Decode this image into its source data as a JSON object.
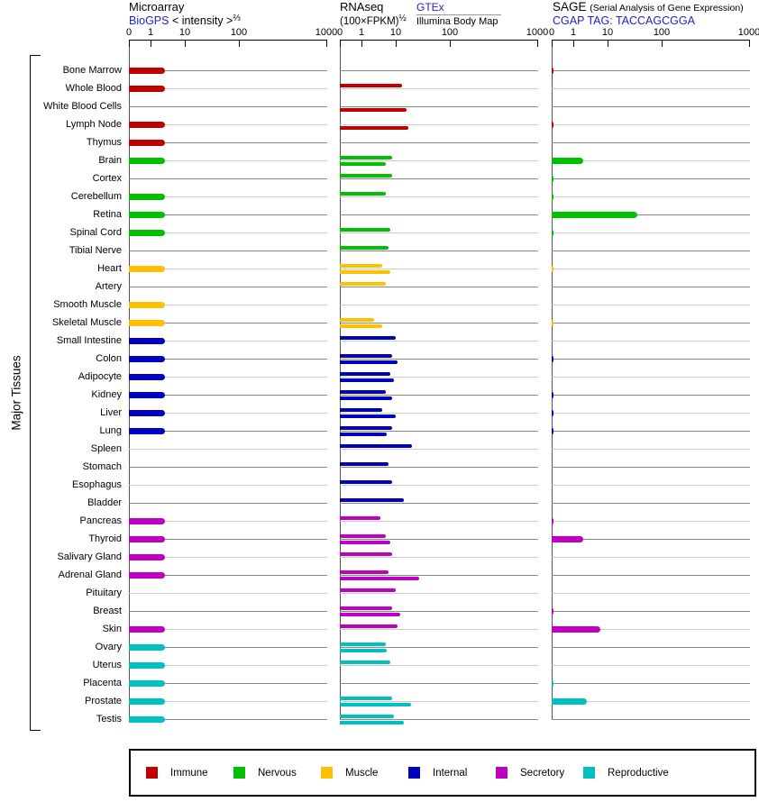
{
  "side_label": "Major Tissues",
  "panels": {
    "microarray": {
      "title": "Microarray",
      "link": "BioGPS",
      "scale_label": "< intensity >",
      "scale_sup": "⅔",
      "ticks": [
        "0",
        "1",
        "10",
        "100",
        "1000"
      ]
    },
    "rnaseq": {
      "title": "RNAseq",
      "scale_label": "(100×FPKM)",
      "scale_sup": "½",
      "link": "GTEx",
      "sublink": "Illumina Body Map",
      "ticks": [
        "0",
        "1",
        "10",
        "100",
        "1000"
      ]
    },
    "sage": {
      "title": "SAGE",
      "subtitle": "(Serial Analysis of Gene Expression)",
      "link": "CGAP",
      "tag_label": "TAG: TACCAGCGGA",
      "ticks": [
        "0",
        "1",
        "10",
        "100",
        "1000"
      ]
    }
  },
  "category_colors": {
    "immune": "#c00000",
    "nervous": "#00c000",
    "muscle": "#ffc000",
    "internal": "#0000c0",
    "secretory": "#c000c0",
    "reproductive": "#00c0c0"
  },
  "legend": [
    {
      "label": "Immune",
      "category": "immune"
    },
    {
      "label": "Nervous",
      "category": "nervous"
    },
    {
      "label": "Muscle",
      "category": "muscle"
    },
    {
      "label": "Internal",
      "category": "internal"
    },
    {
      "label": "Secretory",
      "category": "secretory"
    },
    {
      "label": "Reproductive",
      "category": "reproductive"
    }
  ],
  "chart_data": {
    "type": "bar",
    "orientation": "horizontal",
    "x_scale": "compressed log, ticks at 0/1/10/100/1000",
    "xlim": [
      0,
      1000
    ],
    "series_info": [
      {
        "key": "microarray",
        "name": "Microarray BioGPS < intensity >^2/3"
      },
      {
        "key": "rnaseq_gtex",
        "name": "RNAseq GTEx (100×FPKM)^1/2"
      },
      {
        "key": "rnaseq_illumina",
        "name": "RNAseq Illumina Body Map (100×FPKM)^1/2"
      },
      {
        "key": "sage",
        "name": "SAGE CGAP TAG: TACCAGCGGA"
      }
    ],
    "tissues": [
      {
        "name": "Bone Marrow",
        "category": "immune",
        "microarray": 2.7,
        "rnaseq_gtex": null,
        "rnaseq_illumina": null,
        "sage": 0.1
      },
      {
        "name": "Whole Blood",
        "category": "immune",
        "microarray": 2.7,
        "rnaseq_gtex": 13,
        "rnaseq_illumina": null,
        "sage": null
      },
      {
        "name": "White Blood Cells",
        "category": "immune",
        "microarray": null,
        "rnaseq_gtex": null,
        "rnaseq_illumina": 16,
        "sage": null
      },
      {
        "name": "Lymph Node",
        "category": "immune",
        "microarray": 2.7,
        "rnaseq_gtex": null,
        "rnaseq_illumina": 17,
        "sage": 0.1
      },
      {
        "name": "Thymus",
        "category": "immune",
        "microarray": 2.7,
        "rnaseq_gtex": null,
        "rnaseq_illumina": null,
        "sage": null
      },
      {
        "name": "Brain",
        "category": "nervous",
        "microarray": 2.7,
        "rnaseq_gtex": 8,
        "rnaseq_illumina": 5,
        "sage": 2
      },
      {
        "name": "Cortex",
        "category": "nervous",
        "microarray": null,
        "rnaseq_gtex": 8,
        "rnaseq_illumina": null,
        "sage": 0.1
      },
      {
        "name": "Cerebellum",
        "category": "nervous",
        "microarray": 2.7,
        "rnaseq_gtex": 5,
        "rnaseq_illumina": null,
        "sage": 0.1
      },
      {
        "name": "Retina",
        "category": "nervous",
        "microarray": 2.7,
        "rnaseq_gtex": null,
        "rnaseq_illumina": null,
        "sage": 36
      },
      {
        "name": "Spinal Cord",
        "category": "nervous",
        "microarray": 2.7,
        "rnaseq_gtex": 7,
        "rnaseq_illumina": null,
        "sage": 0.1
      },
      {
        "name": "Tibial Nerve",
        "category": "nervous",
        "microarray": null,
        "rnaseq_gtex": 6,
        "rnaseq_illumina": null,
        "sage": null
      },
      {
        "name": "Heart",
        "category": "muscle",
        "microarray": 2.7,
        "rnaseq_gtex": 4,
        "rnaseq_illumina": 7,
        "sage": 0.1
      },
      {
        "name": "Artery",
        "category": "muscle",
        "microarray": null,
        "rnaseq_gtex": 5,
        "rnaseq_illumina": null,
        "sage": null
      },
      {
        "name": "Smooth Muscle",
        "category": "muscle",
        "microarray": 2.7,
        "rnaseq_gtex": null,
        "rnaseq_illumina": null,
        "sage": null
      },
      {
        "name": "Skeletal Muscle",
        "category": "muscle",
        "microarray": 2.7,
        "rnaseq_gtex": 2.3,
        "rnaseq_illumina": 4,
        "sage": 0.1
      },
      {
        "name": "Small Intestine",
        "category": "internal",
        "microarray": 2.7,
        "rnaseq_gtex": 10,
        "rnaseq_illumina": null,
        "sage": null
      },
      {
        "name": "Colon",
        "category": "internal",
        "microarray": 2.7,
        "rnaseq_gtex": 8,
        "rnaseq_illumina": 11,
        "sage": 0.1
      },
      {
        "name": "Adipocyte",
        "category": "internal",
        "microarray": 2.7,
        "rnaseq_gtex": 7,
        "rnaseq_illumina": 9,
        "sage": null
      },
      {
        "name": "Kidney",
        "category": "internal",
        "microarray": 2.7,
        "rnaseq_gtex": 5,
        "rnaseq_illumina": 8,
        "sage": 0.1
      },
      {
        "name": "Liver",
        "category": "internal",
        "microarray": 2.7,
        "rnaseq_gtex": 4,
        "rnaseq_illumina": 10,
        "sage": 0.1
      },
      {
        "name": "Lung",
        "category": "internal",
        "microarray": 2.7,
        "rnaseq_gtex": 8,
        "rnaseq_illumina": 5.5,
        "sage": 0.1
      },
      {
        "name": "Spleen",
        "category": "internal",
        "microarray": null,
        "rnaseq_gtex": 20,
        "rnaseq_illumina": null,
        "sage": null
      },
      {
        "name": "Stomach",
        "category": "internal",
        "microarray": null,
        "rnaseq_gtex": 6,
        "rnaseq_illumina": null,
        "sage": null
      },
      {
        "name": "Esophagus",
        "category": "internal",
        "microarray": null,
        "rnaseq_gtex": 8,
        "rnaseq_illumina": null,
        "sage": null
      },
      {
        "name": "Bladder",
        "category": "internal",
        "microarray": null,
        "rnaseq_gtex": 14,
        "rnaseq_illumina": null,
        "sage": null
      },
      {
        "name": "Pancreas",
        "category": "secretory",
        "microarray": 2.7,
        "rnaseq_gtex": 3.6,
        "rnaseq_illumina": null,
        "sage": 0.1
      },
      {
        "name": "Thyroid",
        "category": "secretory",
        "microarray": 2.7,
        "rnaseq_gtex": 5,
        "rnaseq_illumina": 7,
        "sage": 2
      },
      {
        "name": "Salivary Gland",
        "category": "secretory",
        "microarray": 2.7,
        "rnaseq_gtex": 8,
        "rnaseq_illumina": null,
        "sage": null
      },
      {
        "name": "Adrenal Gland",
        "category": "secretory",
        "microarray": 2.7,
        "rnaseq_gtex": 6,
        "rnaseq_illumina": 27,
        "sage": null
      },
      {
        "name": "Pituitary",
        "category": "secretory",
        "microarray": null,
        "rnaseq_gtex": 10,
        "rnaseq_illumina": null,
        "sage": null
      },
      {
        "name": "Breast",
        "category": "secretory",
        "microarray": null,
        "rnaseq_gtex": 8,
        "rnaseq_illumina": 12,
        "sage": 0.1
      },
      {
        "name": "Skin",
        "category": "secretory",
        "microarray": 2.7,
        "rnaseq_gtex": 11,
        "rnaseq_illumina": null,
        "sage": 6
      },
      {
        "name": "Ovary",
        "category": "reproductive",
        "microarray": 2.7,
        "rnaseq_gtex": 5,
        "rnaseq_illumina": 5.4,
        "sage": null
      },
      {
        "name": "Uterus",
        "category": "reproductive",
        "microarray": 2.7,
        "rnaseq_gtex": 7,
        "rnaseq_illumina": null,
        "sage": null
      },
      {
        "name": "Placenta",
        "category": "reproductive",
        "microarray": 2.7,
        "rnaseq_gtex": null,
        "rnaseq_illumina": null,
        "sage": 0.1
      },
      {
        "name": "Prostate",
        "category": "reproductive",
        "microarray": 2.7,
        "rnaseq_gtex": 8,
        "rnaseq_illumina": 19,
        "sage": 2.5
      },
      {
        "name": "Testis",
        "category": "reproductive",
        "microarray": 2.7,
        "rnaseq_gtex": 9,
        "rnaseq_illumina": 14,
        "sage": null
      }
    ]
  }
}
